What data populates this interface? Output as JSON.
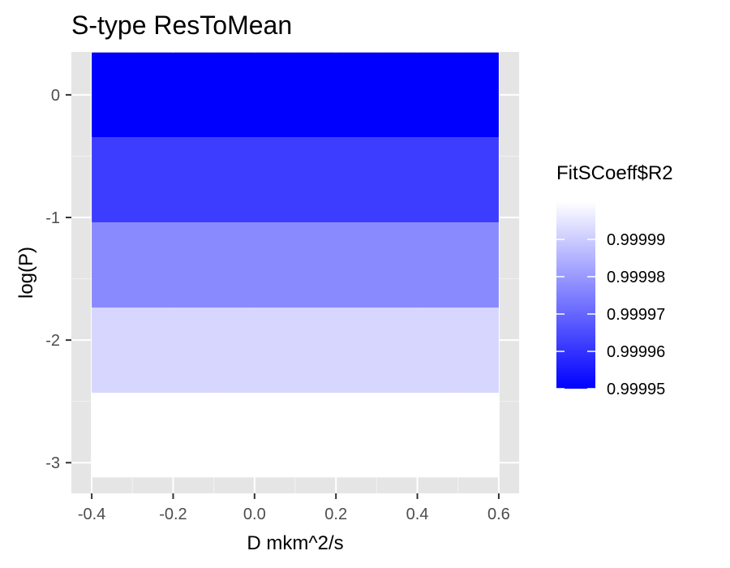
{
  "chart_data": {
    "type": "heatmap",
    "title": "S-type ResToMean",
    "xlabel": "D mkm^2/s",
    "ylabel": "log(P)",
    "xlim": [
      -0.45,
      0.65
    ],
    "ylim": [
      -3.25,
      0.35
    ],
    "x_ticks": [
      -0.4,
      -0.2,
      0.0,
      0.2,
      0.4,
      0.6
    ],
    "x_tick_labels": [
      "-0.4",
      "-0.2",
      "0.0",
      "0.2",
      "0.4",
      "0.6"
    ],
    "y_ticks": [
      0,
      -1,
      -2,
      -3
    ],
    "y_tick_labels": [
      "0",
      "-1",
      "-2",
      "-3"
    ],
    "grid": true,
    "panel_background": "#e5e5e5",
    "x_range_of_tiles": [
      -0.4,
      0.6
    ],
    "tiles": [
      {
        "ymin": -0.345,
        "ymax": 0.345,
        "value": 0.99995
      },
      {
        "ymin": -1.04,
        "ymax": -0.345,
        "value": 0.999962
      },
      {
        "ymin": -1.735,
        "ymax": -1.04,
        "value": 0.999977
      },
      {
        "ymin": -2.43,
        "ymax": -1.735,
        "value": 0.999992
      },
      {
        "ymin": -3.12,
        "ymax": -2.43,
        "value": 1.0
      }
    ],
    "legend": {
      "title": "FitSCoeff$R2",
      "position": "right",
      "low_color": "#0000ff",
      "high_color": "#ffffff",
      "limits": [
        0.99995,
        1.0
      ],
      "breaks": [
        0.99995,
        0.99996,
        0.99997,
        0.99998,
        0.99999
      ],
      "labels": [
        "0.99995",
        "0.99996",
        "0.99997",
        "0.99998",
        "0.99999"
      ]
    }
  }
}
